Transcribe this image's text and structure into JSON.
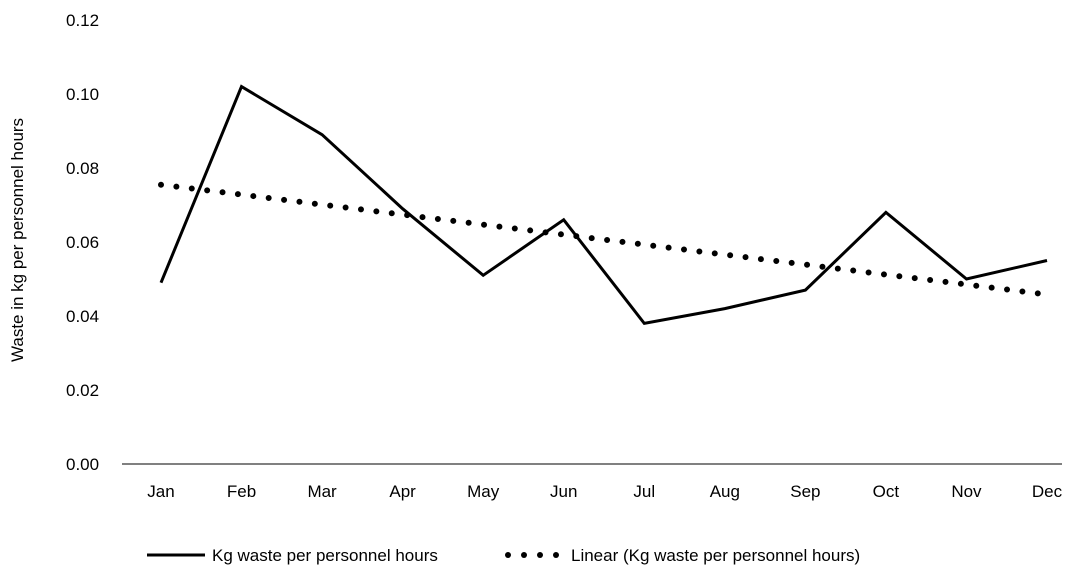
{
  "chart_data": {
    "type": "line",
    "categories": [
      "Jan",
      "Feb",
      "Mar",
      "Apr",
      "May",
      "Jun",
      "Jul",
      "Aug",
      "Sep",
      "Oct",
      "Nov",
      "Dec"
    ],
    "series": [
      {
        "name": "Kg waste per personnel hours",
        "style": "solid",
        "color": "#000000",
        "values": [
          0.049,
          0.102,
          0.089,
          0.069,
          0.051,
          0.066,
          0.038,
          0.042,
          0.047,
          0.068,
          0.05,
          0.055
        ]
      },
      {
        "name": "Linear (Kg waste per personnel hours)",
        "style": "dotted",
        "color": "#000000",
        "values": [
          0.0755,
          0.0728,
          0.0701,
          0.0674,
          0.0647,
          0.062,
          0.0593,
          0.0566,
          0.0539,
          0.0512,
          0.0485,
          0.0458
        ]
      }
    ],
    "ylabel": "Waste in kg per personnel hours",
    "xlabel": "",
    "ylim": [
      0,
      0.12
    ],
    "yticks": [
      "0.00",
      "0.02",
      "0.04",
      "0.06",
      "0.08",
      "0.10",
      "0.12"
    ],
    "grid": false,
    "legend_position": "bottom"
  }
}
